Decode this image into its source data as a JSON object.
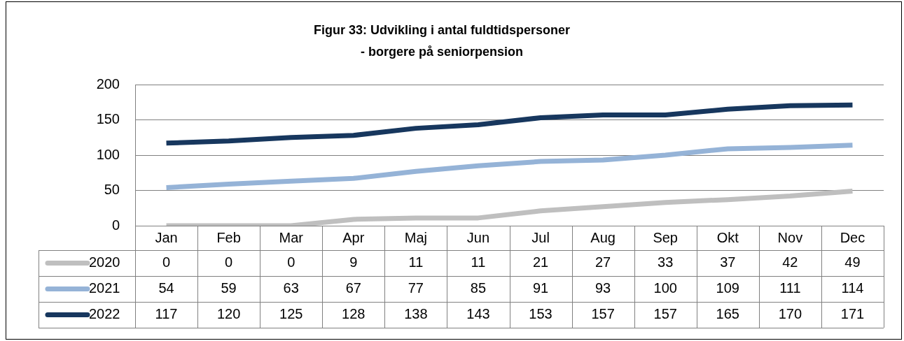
{
  "chart_data": {
    "type": "line",
    "title": "Figur 33: Udvikling i antal fuldtidspersoner\n- borgere på seniorpension",
    "categories": [
      "Jan",
      "Feb",
      "Mar",
      "Apr",
      "Maj",
      "Jun",
      "Jul",
      "Aug",
      "Sep",
      "Okt",
      "Nov",
      "Dec"
    ],
    "series": [
      {
        "name": "2020",
        "color": "#bfbfbf",
        "values": [
          0,
          0,
          0,
          9,
          11,
          11,
          21,
          27,
          33,
          37,
          42,
          49
        ]
      },
      {
        "name": "2021",
        "color": "#95b3d7",
        "values": [
          54,
          59,
          63,
          67,
          77,
          85,
          91,
          93,
          100,
          109,
          111,
          114
        ]
      },
      {
        "name": "2022",
        "color": "#17375e",
        "values": [
          117,
          120,
          125,
          128,
          138,
          143,
          153,
          157,
          157,
          165,
          170,
          171
        ]
      }
    ],
    "ylim": [
      0,
      200
    ],
    "yticks": [
      0,
      50,
      100,
      150,
      200
    ],
    "grid": "y",
    "legend": "bottom",
    "data_labels": true,
    "marker": "none",
    "line_style": "solid"
  }
}
